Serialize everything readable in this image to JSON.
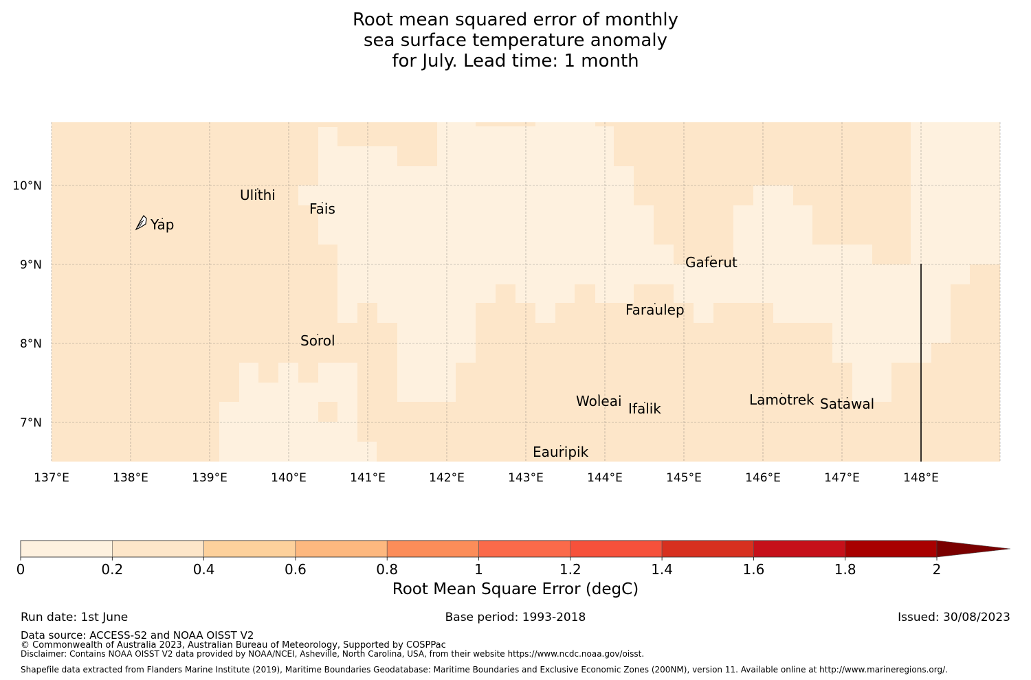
{
  "title": {
    "line1": "Root mean squared error of monthly",
    "line2": "sea surface temperature anomaly",
    "line3": "for July. Lead time: 1 month"
  },
  "map": {
    "lon_ticks": [
      "137°E",
      "138°E",
      "139°E",
      "140°E",
      "141°E",
      "142°E",
      "143°E",
      "144°E",
      "145°E",
      "146°E",
      "147°E",
      "148°E"
    ],
    "lat_ticks": [
      "10°N",
      "9°N",
      "8°N",
      "7°N"
    ],
    "colors": {
      "low": "#fef1df",
      "mid": "#fde6c9"
    },
    "places": [
      {
        "name": "Yap",
        "lon": 138.2,
        "lat": 9.5
      },
      {
        "name": "Ulithi",
        "lon": 139.7,
        "lat": 9.9
      },
      {
        "name": "Fais",
        "lon": 140.5,
        "lat": 9.7
      },
      {
        "name": "Sorol",
        "lon": 140.4,
        "lat": 8.1
      },
      {
        "name": "Gaferut",
        "lon": 145.4,
        "lat": 9.2
      },
      {
        "name": "Faraulep",
        "lon": 144.5,
        "lat": 8.6
      },
      {
        "name": "Woleai",
        "lon": 143.9,
        "lat": 7.4
      },
      {
        "name": "Ifalik",
        "lon": 144.4,
        "lat": 7.25
      },
      {
        "name": "Eauripik",
        "lon": 143.1,
        "lat": 6.7
      },
      {
        "name": "Lamotrek",
        "lon": 146.3,
        "lat": 7.5
      },
      {
        "name": "Satawal",
        "lon": 147.0,
        "lat": 7.35
      }
    ]
  },
  "colorbar": {
    "ticks": [
      "0",
      "0.2",
      "0.4",
      "0.6",
      "0.8",
      "1",
      "1.2",
      "1.4",
      "1.6",
      "1.8",
      "2"
    ],
    "colors": [
      "#fef1df",
      "#fde6c9",
      "#fdd19c",
      "#fdb87f",
      "#fc8d59",
      "#fb6a4a",
      "#f6513b",
      "#d7301f",
      "#c6101a",
      "#a80000",
      "#7a0000"
    ],
    "label": "Root Mean Square Error (degC)"
  },
  "footer": {
    "run_date": "Run date: 1st June",
    "base_period": "Base period: 1993-2018",
    "issued": "Issued: 30/08/2023",
    "data_source": "Data source: ACCESS-S2 and NOAA OISST V2",
    "copyright": "© Commonwealth of Australia 2023, Australian Bureau of Meteorology, Supported by COSPPac",
    "disclaimer": "Disclaimer: Contains NOAA OISST V2 data provided by NOAA/NCEI, Asheville, North Carolina, USA, from their website https://www.ncdc.noaa.gov/oisst.",
    "shapefile": "Shapefile data extracted from Flanders Marine Institute (2019), Maritime Boundaries Geodatabase: Maritime Boundaries and Exclusive Economic Zones (200NM), version 11. Available online at http://www.marineregions.org/."
  }
}
